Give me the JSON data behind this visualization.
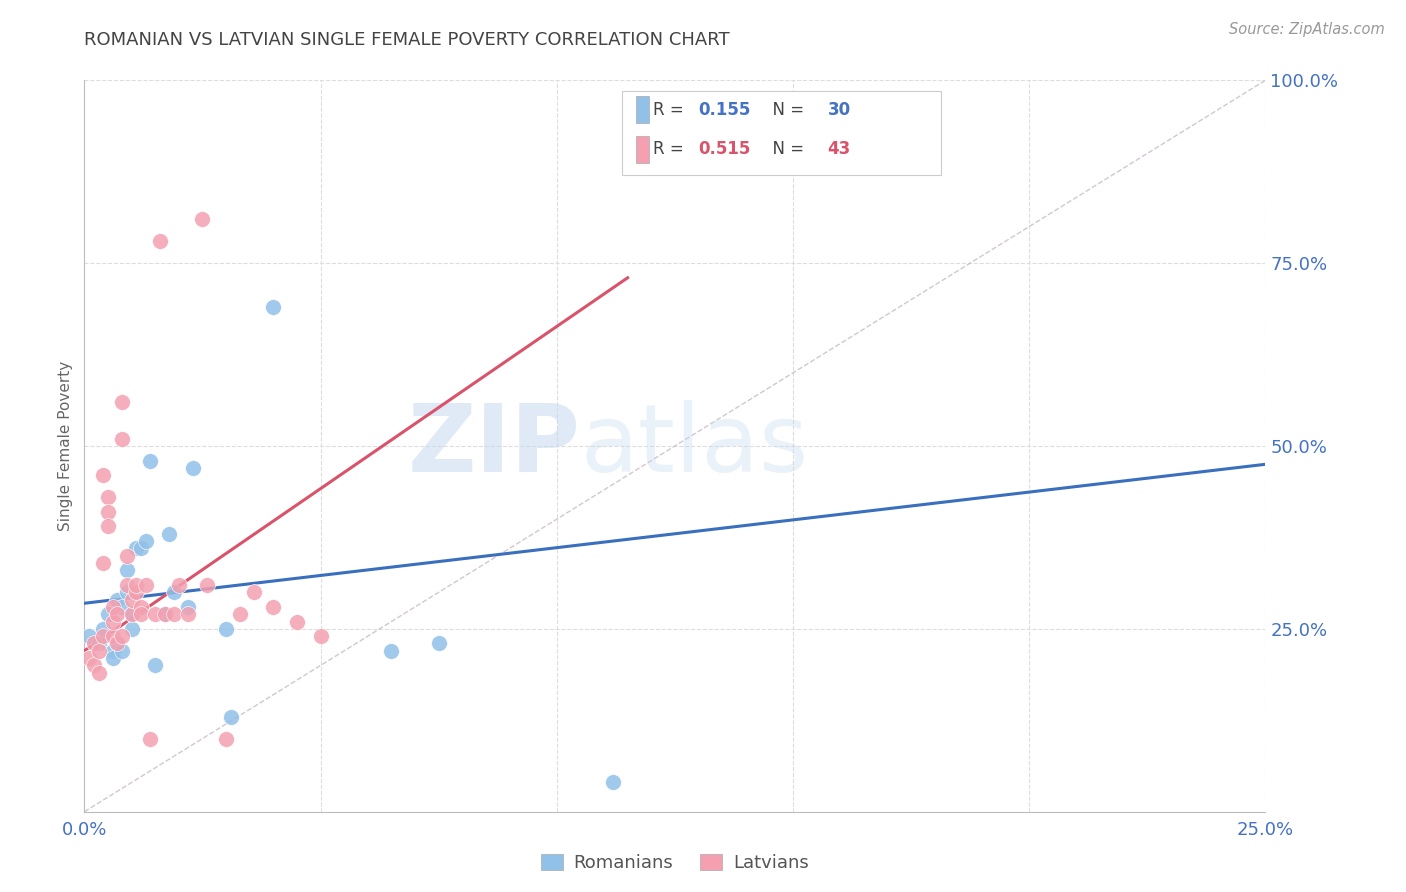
{
  "title": "ROMANIAN VS LATVIAN SINGLE FEMALE POVERTY CORRELATION CHART",
  "source": "Source: ZipAtlas.com",
  "ylabel": "Single Female Poverty",
  "right_ytick_labels": [
    "",
    "25.0%",
    "50.0%",
    "75.0%",
    "100.0%"
  ],
  "right_ytick_vals": [
    0.0,
    0.25,
    0.5,
    0.75,
    1.0
  ],
  "blue_color": "#91c0e8",
  "pink_color": "#f4a0b0",
  "blue_line_color": "#3a6fbf",
  "pink_line_color": "#d9536a",
  "diagonal_color": "#c8b8c8",
  "xlim": [
    0.0,
    0.25
  ],
  "ylim": [
    0.0,
    1.0
  ],
  "blue_R": "0.155",
  "blue_N": "30",
  "pink_R": "0.515",
  "pink_N": "43",
  "blue_trend_x0": 0.0,
  "blue_trend_y0": 0.285,
  "blue_trend_x1": 0.25,
  "blue_trend_y1": 0.475,
  "pink_trend_x0": 0.0,
  "pink_trend_y0": 0.22,
  "pink_trend_x1": 0.115,
  "pink_trend_y1": 0.73,
  "blue_points_x": [
    0.001,
    0.003,
    0.004,
    0.005,
    0.006,
    0.006,
    0.007,
    0.007,
    0.008,
    0.008,
    0.009,
    0.009,
    0.01,
    0.01,
    0.011,
    0.012,
    0.013,
    0.014,
    0.015,
    0.017,
    0.018,
    0.019,
    0.022,
    0.023,
    0.03,
    0.031,
    0.04,
    0.065,
    0.075,
    0.112
  ],
  "blue_points_y": [
    0.24,
    0.23,
    0.25,
    0.27,
    0.22,
    0.21,
    0.23,
    0.29,
    0.22,
    0.28,
    0.3,
    0.33,
    0.27,
    0.25,
    0.36,
    0.36,
    0.37,
    0.48,
    0.2,
    0.27,
    0.38,
    0.3,
    0.28,
    0.47,
    0.25,
    0.13,
    0.69,
    0.22,
    0.23,
    0.04
  ],
  "pink_points_x": [
    0.001,
    0.002,
    0.002,
    0.003,
    0.003,
    0.004,
    0.004,
    0.004,
    0.005,
    0.005,
    0.005,
    0.006,
    0.006,
    0.006,
    0.007,
    0.007,
    0.008,
    0.008,
    0.008,
    0.009,
    0.009,
    0.01,
    0.01,
    0.011,
    0.011,
    0.012,
    0.012,
    0.013,
    0.014,
    0.015,
    0.016,
    0.017,
    0.019,
    0.02,
    0.022,
    0.025,
    0.026,
    0.03,
    0.033,
    0.036,
    0.04,
    0.045,
    0.05
  ],
  "pink_points_y": [
    0.21,
    0.23,
    0.2,
    0.22,
    0.19,
    0.46,
    0.34,
    0.24,
    0.43,
    0.41,
    0.39,
    0.24,
    0.26,
    0.28,
    0.23,
    0.27,
    0.51,
    0.56,
    0.24,
    0.31,
    0.35,
    0.27,
    0.29,
    0.3,
    0.31,
    0.28,
    0.27,
    0.31,
    0.1,
    0.27,
    0.78,
    0.27,
    0.27,
    0.31,
    0.27,
    0.81,
    0.31,
    0.1,
    0.27,
    0.3,
    0.28,
    0.26,
    0.24
  ],
  "watermark_zip": "ZIP",
  "watermark_atlas": "atlas",
  "bg_color": "#ffffff",
  "grid_color": "#dddddd",
  "text_color_blue": "#4472c4",
  "text_color_dark": "#444444",
  "text_color_source": "#999999"
}
